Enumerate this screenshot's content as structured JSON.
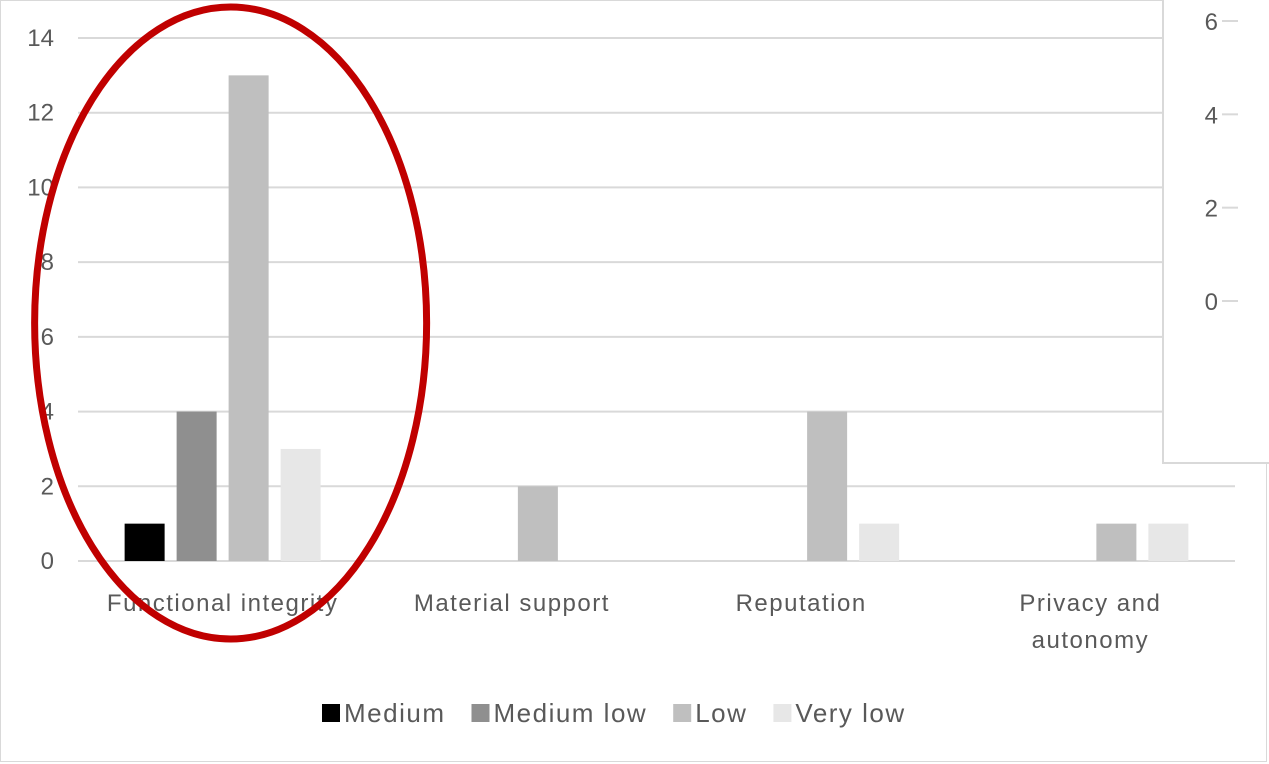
{
  "chart_data": [
    {
      "type": "bar",
      "categories": [
        "Functional integrity",
        "Material support",
        "Reputation",
        "Privacy and autonomy"
      ],
      "category_lines": [
        [
          "Functional integrity"
        ],
        [
          "Material support"
        ],
        [
          "Reputation"
        ],
        [
          "Privacy and",
          "autonomy"
        ]
      ],
      "series": [
        {
          "name": "Medium",
          "color": "#000000",
          "values": [
            1,
            0,
            0,
            0
          ]
        },
        {
          "name": "Medium low",
          "color": "#8f8f8f",
          "values": [
            4,
            0,
            0,
            0
          ]
        },
        {
          "name": "Low",
          "color": "#bfbfbf",
          "values": [
            13,
            2,
            4,
            1
          ]
        },
        {
          "name": "Very low",
          "color": "#e7e7e7",
          "values": [
            3,
            0,
            1,
            1
          ]
        }
      ],
      "ylim": [
        0,
        14
      ],
      "yticks": [
        "0",
        "2",
        "4",
        "6",
        "8",
        "10",
        "12",
        "14"
      ],
      "grid": true,
      "legend": "bottom",
      "highlight": {
        "category": "Functional integrity",
        "shape": "ellipse",
        "color": "#c00000"
      }
    },
    {
      "type": "bar",
      "note": "partially visible inset chart, overlapping top-right",
      "yticks": [
        "0",
        "2",
        "4",
        "6"
      ]
    }
  ]
}
